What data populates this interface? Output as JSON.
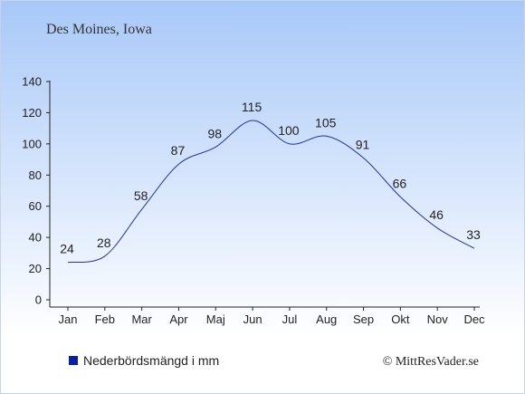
{
  "location": "Des Moines, Iowa",
  "copyright": "© MittResVader.se",
  "colors": {
    "line": "#2233aa",
    "legend_swatch": "#0a1fa8",
    "text": "#222222",
    "bg_top": "#a8c8f8",
    "bg_bottom": "#ffffff"
  },
  "chart_data": {
    "type": "line",
    "categories": [
      "Jan",
      "Feb",
      "Mar",
      "Apr",
      "Maj",
      "Jun",
      "Jul",
      "Aug",
      "Sep",
      "Okt",
      "Nov",
      "Dec"
    ],
    "series": [
      {
        "name": "Nederbördsmängd i mm",
        "values": [
          24,
          28,
          58,
          87,
          98,
          115,
          100,
          105,
          91,
          66,
          46,
          33
        ]
      }
    ],
    "ylim": [
      0,
      140
    ],
    "yticks": [
      0,
      20,
      40,
      60,
      80,
      100,
      120,
      140
    ],
    "data_labels": true,
    "grid": false,
    "legend": "bottom-left"
  }
}
